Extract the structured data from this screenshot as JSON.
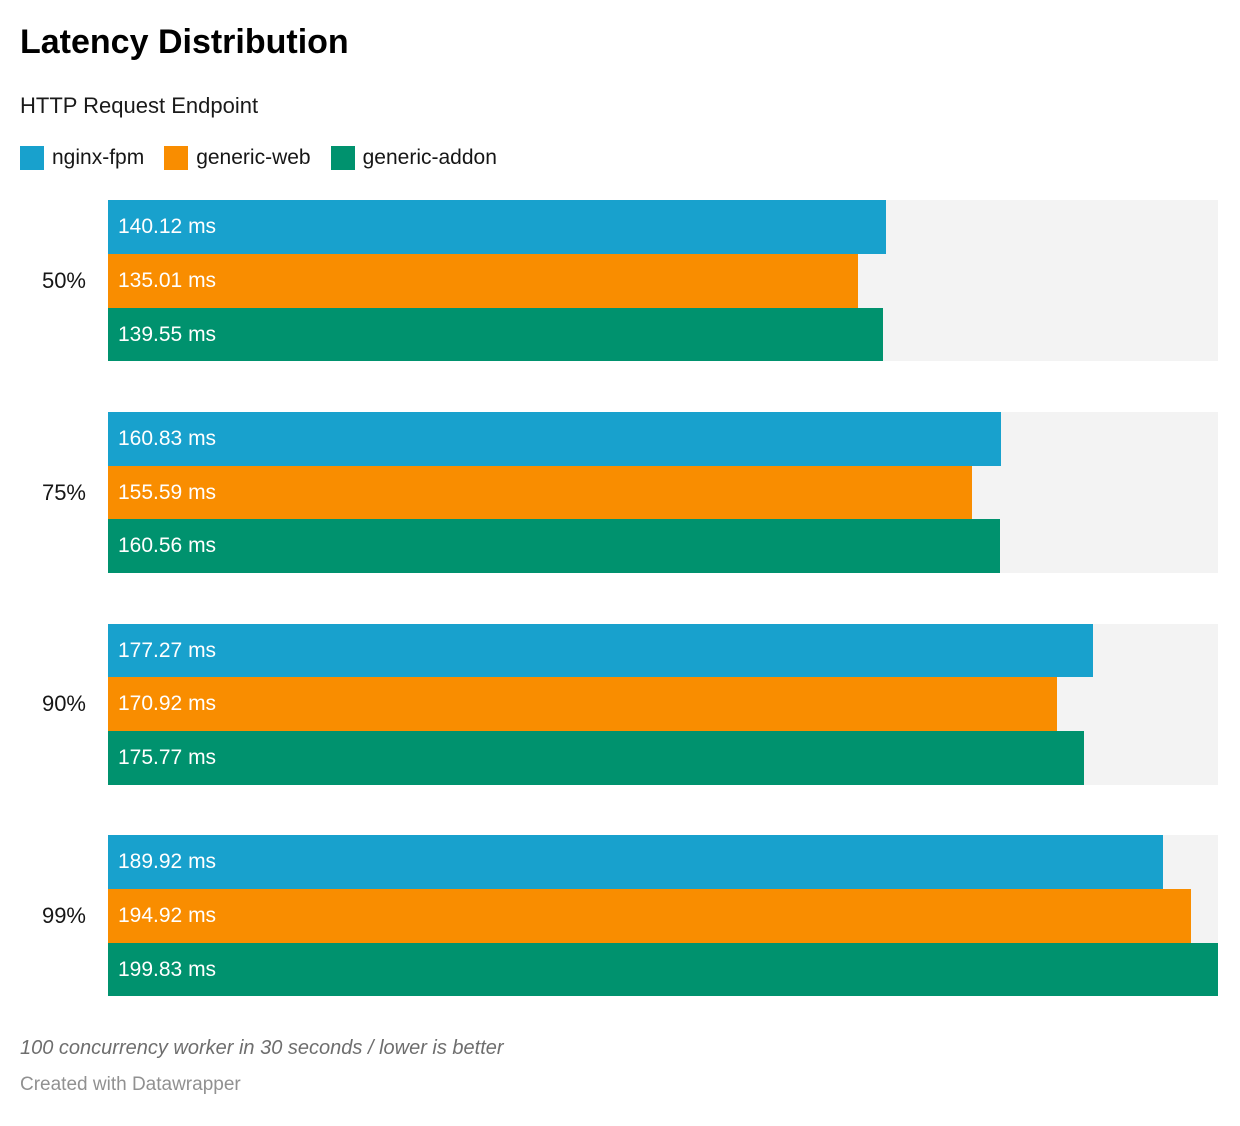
{
  "header": {
    "title": "Latency Distribution",
    "subtitle": "HTTP Request Endpoint"
  },
  "footer": {
    "notes": "100 concurrency worker in 30 seconds / lower is better",
    "attribution": "Created with Datawrapper"
  },
  "colors": {
    "track": "#f3f3f3",
    "bar_label": "#ffffff",
    "title_text": "#000000",
    "notes_gray": "#6e6e6e",
    "attribution_gray": "#919191"
  },
  "chart_data": {
    "type": "bar",
    "orientation": "horizontal",
    "title": "Latency Distribution",
    "subtitle": "HTTP Request Endpoint",
    "unit": "ms",
    "value_label_format": "{value} ms",
    "categories": [
      "50%",
      "75%",
      "90%",
      "99%"
    ],
    "series": [
      {
        "name": "nginx-fpm",
        "color": "#18a1cd",
        "values": [
          140.12,
          160.83,
          177.27,
          189.92
        ]
      },
      {
        "name": "generic-web",
        "color": "#f98d00",
        "values": [
          135.01,
          155.59,
          170.92,
          194.92
        ]
      },
      {
        "name": "generic-addon",
        "color": "#00926e",
        "values": [
          139.55,
          160.56,
          175.77,
          199.83
        ]
      }
    ],
    "xlim": [
      0,
      199.83
    ],
    "grid": false,
    "legend_position": "top",
    "track_color": "#f3f3f3",
    "notes": "100 concurrency worker in 30 seconds / lower is better",
    "attribution": "Created with Datawrapper"
  }
}
